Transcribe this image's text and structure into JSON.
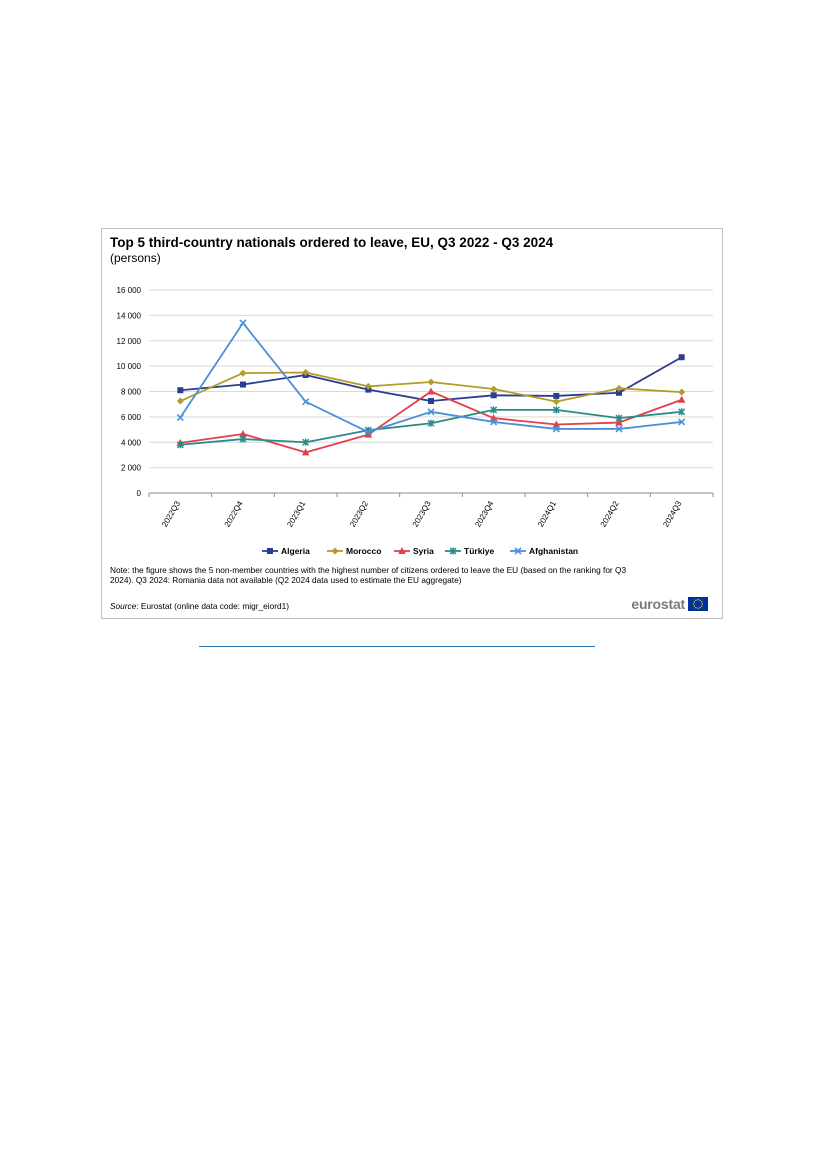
{
  "chart_data": {
    "type": "line",
    "title": "Top 5 third-country nationals ordered to leave, EU, Q3 2022 - Q3 2024",
    "subtitle": "(persons)",
    "categories": [
      "2022Q3",
      "2022Q4",
      "2023Q1",
      "2023Q2",
      "2023Q3",
      "2023Q4",
      "2024Q1",
      "2024Q2",
      "2024Q3"
    ],
    "ylim": [
      0,
      16000
    ],
    "yticks": [
      0,
      2000,
      4000,
      6000,
      8000,
      10000,
      12000,
      14000,
      16000
    ],
    "ytick_labels": [
      "0",
      "2 000",
      "4 000",
      "6 000",
      "8 000",
      "10 000",
      "12 000",
      "14 000",
      "16 000"
    ],
    "grid": true,
    "legend_position": "bottom",
    "series": [
      {
        "name": "Algeria",
        "color": "#2b3d8f",
        "marker": "square",
        "values": [
          8100,
          8550,
          9300,
          8150,
          7250,
          7700,
          7650,
          7900,
          10700
        ]
      },
      {
        "name": "Morocco",
        "color": "#b39b2b",
        "marker": "diamond",
        "values": [
          7250,
          9450,
          9500,
          8400,
          8750,
          8200,
          7200,
          8250,
          7950
        ]
      },
      {
        "name": "Syria",
        "color": "#e0414a",
        "marker": "triangle",
        "values": [
          3950,
          4650,
          3200,
          4600,
          8000,
          5900,
          5400,
          5550,
          7350
        ]
      },
      {
        "name": "Türkiye",
        "color": "#2a8c8a",
        "marker": "star",
        "values": [
          3800,
          4250,
          4000,
          4950,
          5500,
          6550,
          6550,
          5900,
          6400
        ]
      },
      {
        "name": "Afghanistan",
        "color": "#4a90d9",
        "marker": "cross",
        "values": [
          5950,
          13400,
          7200,
          4800,
          6400,
          5600,
          5050,
          5050,
          5600
        ]
      }
    ]
  },
  "note": "Note: the figure shows the 5 non-member countries with the highest number of citizens ordered to leave the EU (based on the ranking for Q3 2024). Q3 2024: Romania data not available (Q2 2024 data used to estimate the EU aggregate)",
  "source_label": "Source",
  "source_text": ": Eurostat (online data code: migr_eiord1)",
  "logo_text": "eurostat",
  "logo_flag_color": "#003399",
  "logo_star_color": "#ffcc00"
}
